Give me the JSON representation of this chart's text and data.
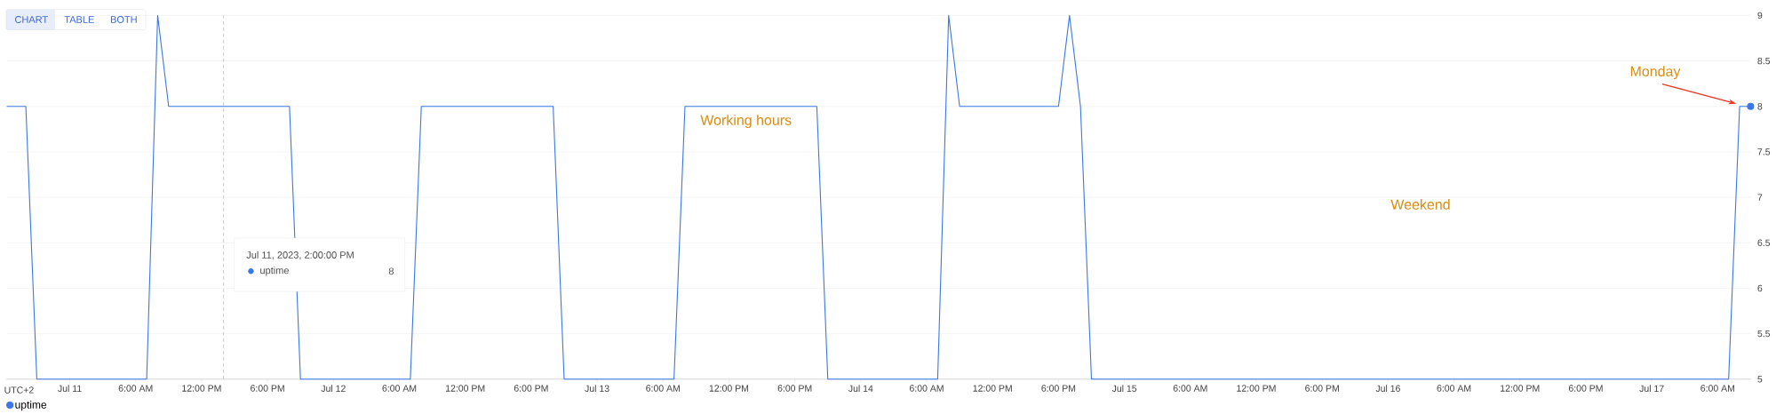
{
  "chart_data": {
    "type": "line",
    "x": [
      "2023-07-10T18:15",
      "2023-07-10T20:00",
      "2023-07-10T21:00",
      "2023-07-11T07:00",
      "2023-07-11T08:00",
      "2023-07-11T09:00",
      "2023-07-11T20:00",
      "2023-07-11T21:00",
      "2023-07-12T07:00",
      "2023-07-12T08:00",
      "2023-07-12T20:00",
      "2023-07-12T21:00",
      "2023-07-13T07:00",
      "2023-07-13T08:00",
      "2023-07-13T20:00",
      "2023-07-13T21:00",
      "2023-07-14T07:00",
      "2023-07-14T08:00",
      "2023-07-14T09:00",
      "2023-07-14T18:00",
      "2023-07-14T19:00",
      "2023-07-14T20:00",
      "2023-07-14T21:00",
      "2023-07-17T07:00",
      "2023-07-17T08:00",
      "2023-07-17T09:00"
    ],
    "series": [
      {
        "name": "uptime",
        "color": "#3b78e7",
        "values": [
          8,
          8,
          5,
          5,
          9,
          8,
          8,
          5,
          5,
          8,
          8,
          5,
          5,
          8,
          8,
          5,
          5,
          9,
          8,
          8,
          9,
          8,
          5,
          5,
          8,
          8
        ]
      }
    ],
    "xlim": [
      "2023-07-10T18:15",
      "2023-07-17T09:00"
    ],
    "xticks": [
      {
        "value": "2023-07-11T00:00",
        "label": "Jul 11"
      },
      {
        "value": "2023-07-11T06:00",
        "label": "6:00 AM"
      },
      {
        "value": "2023-07-11T12:00",
        "label": "12:00 PM"
      },
      {
        "value": "2023-07-11T18:00",
        "label": "6:00 PM"
      },
      {
        "value": "2023-07-12T00:00",
        "label": "Jul 12"
      },
      {
        "value": "2023-07-12T06:00",
        "label": "6:00 AM"
      },
      {
        "value": "2023-07-12T12:00",
        "label": "12:00 PM"
      },
      {
        "value": "2023-07-12T18:00",
        "label": "6:00 PM"
      },
      {
        "value": "2023-07-13T00:00",
        "label": "Jul 13"
      },
      {
        "value": "2023-07-13T06:00",
        "label": "6:00 AM"
      },
      {
        "value": "2023-07-13T12:00",
        "label": "12:00 PM"
      },
      {
        "value": "2023-07-13T18:00",
        "label": "6:00 PM"
      },
      {
        "value": "2023-07-14T00:00",
        "label": "Jul 14"
      },
      {
        "value": "2023-07-14T06:00",
        "label": "6:00 AM"
      },
      {
        "value": "2023-07-14T12:00",
        "label": "12:00 PM"
      },
      {
        "value": "2023-07-14T18:00",
        "label": "6:00 PM"
      },
      {
        "value": "2023-07-15T00:00",
        "label": "Jul 15"
      },
      {
        "value": "2023-07-15T06:00",
        "label": "6:00 AM"
      },
      {
        "value": "2023-07-15T12:00",
        "label": "12:00 PM"
      },
      {
        "value": "2023-07-15T18:00",
        "label": "6:00 PM"
      },
      {
        "value": "2023-07-16T00:00",
        "label": "Jul 16"
      },
      {
        "value": "2023-07-16T06:00",
        "label": "6:00 AM"
      },
      {
        "value": "2023-07-16T12:00",
        "label": "12:00 PM"
      },
      {
        "value": "2023-07-16T18:00",
        "label": "6:00 PM"
      },
      {
        "value": "2023-07-17T00:00",
        "label": "Jul 17"
      },
      {
        "value": "2023-07-17T06:00",
        "label": "6:00 AM"
      }
    ],
    "ylim": [
      5,
      9
    ],
    "yticks": [
      5,
      5.5,
      6,
      6.5,
      7,
      7.5,
      8,
      8.5,
      9
    ],
    "grid": "y",
    "legend": "bottom left",
    "line_style": "solid",
    "ref_lines": [
      {
        "axis": "x",
        "value": "2023-07-11T14:00",
        "label": "Jul 11, 2023, 2:00:00 PM",
        "color": "#bdbdbd",
        "line_style": "dashed"
      }
    ],
    "annotations": [
      "CHART",
      "TABLE",
      "BOTH",
      "UTC+2",
      "Working hours",
      "Weekend",
      "Monday",
      "8"
    ]
  }
}
